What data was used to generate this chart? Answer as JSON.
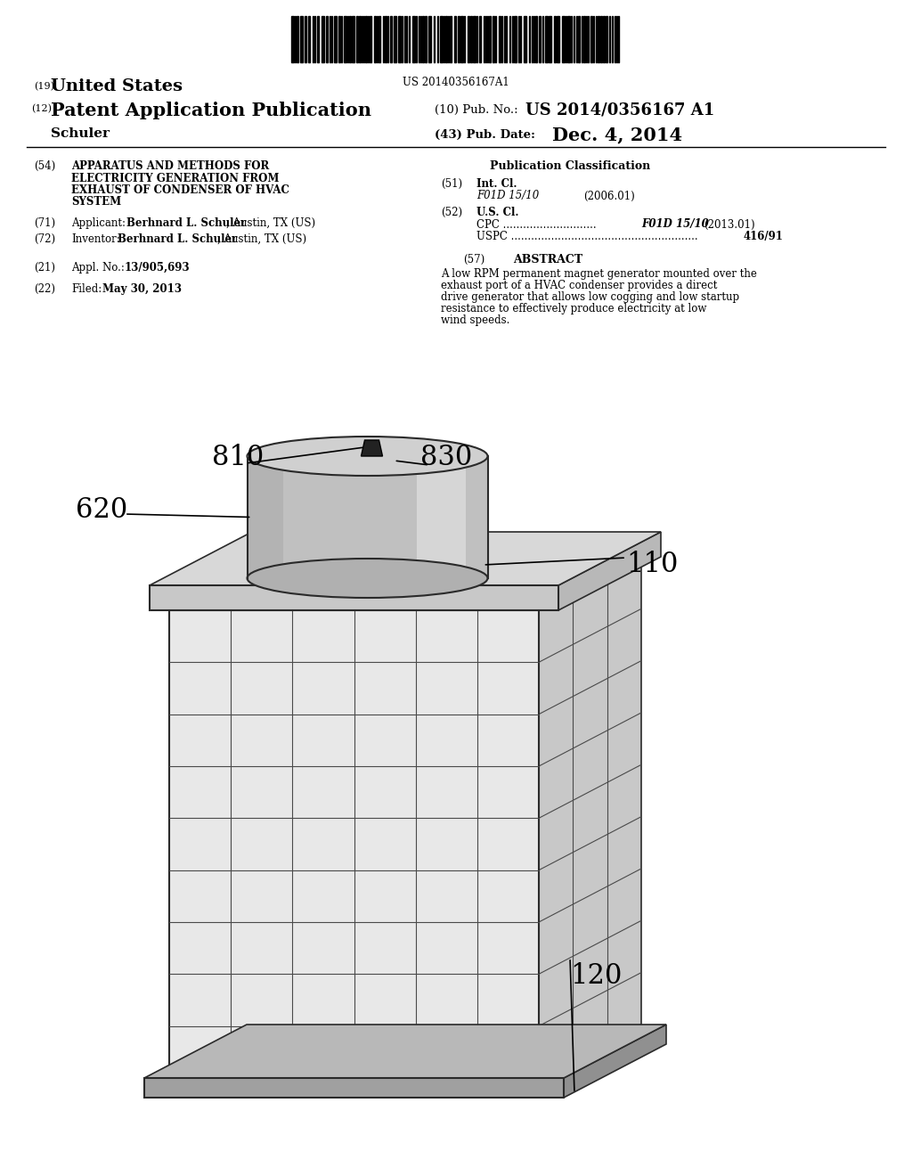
{
  "bg_color": "#ffffff",
  "barcode_text": "US 20140356167A1",
  "title_19_sub": "(19)",
  "title_19_main": "United States",
  "title_12_sub": "(12)",
  "title_12_main": "Patent Application Publication",
  "pub_no_label": "(10) Pub. No.:",
  "pub_no_value": "US 2014/0356167 A1",
  "inventor_last": "Schuler",
  "pub_date_label": "(43) Pub. Date:",
  "pub_date_value": "Dec. 4, 2014",
  "field54_label": "(54)",
  "field54_lines": [
    "APPARATUS AND METHODS FOR",
    "ELECTRICITY GENERATION FROM",
    "EXHAUST OF CONDENSER OF HVAC",
    "SYSTEM"
  ],
  "pub_class_label": "Publication Classification",
  "field51_label": "(51)",
  "field51_text": "Int. Cl.",
  "int_cl_code": "F01D 15/10",
  "int_cl_year": "(2006.01)",
  "field52_label": "(52)",
  "field52_text": "U.S. Cl.",
  "cpc_label": "CPC",
  "cpc_dots": " ............................",
  "cpc_code": "F01D 15/10",
  "cpc_year": "(2013.01)",
  "uspc_label": "USPC",
  "uspc_dots": " ........................................................",
  "uspc_value": "416/91",
  "field71_label": "(71)",
  "field71_text": "Applicant:",
  "applicant_name": "Berhnard L. Schuler",
  "applicant_loc": ", Austin, TX (US)",
  "field72_label": "(72)",
  "field72_text": "Inventor:",
  "inventor_full_name": "Berhnard L. Schuler",
  "inventor_loc": ", Austin, TX (US)",
  "field21_label": "(21)",
  "appl_no_label": "Appl. No.:",
  "appl_no_value": "13/905,693",
  "field22_label": "(22)",
  "filed_label": "Filed:",
  "filed_value": "May 30, 2013",
  "abstract_label": "ABSTRACT",
  "abstract_text": "A low RPM permanent magnet generator mounted over the exhaust port of a HVAC condenser provides a direct drive generator that allows low cogging and low startup resistance to effectively produce electricity at low wind speeds.",
  "label_110": "110",
  "label_120": "120",
  "label_620": "620",
  "label_810": "810",
  "label_830": "830",
  "line_color": "#2a2a2a",
  "face_color": "#e8e8e8",
  "side_color": "#c8c8c8",
  "top_color": "#eeeeee",
  "cyl_color": "#d2d2d2",
  "cyl_highlight": "#e8e8e8",
  "base_color": "#b0b0b0",
  "rim_color": "#c0c0c0"
}
